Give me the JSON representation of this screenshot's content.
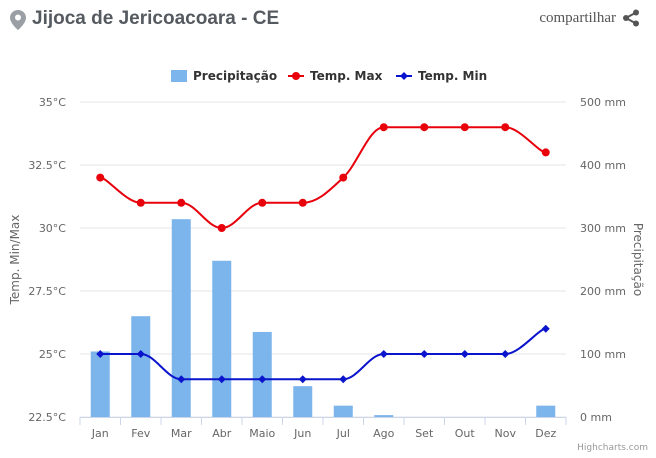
{
  "header": {
    "title": "Jijoca de Jericoacoara - CE",
    "share_label": "compartilhar",
    "pin_icon": "map-pin-icon",
    "share_icon": "share-icon"
  },
  "credits": "Highcharts.com",
  "colors": {
    "precip": "#7cb5ec",
    "tmax": "#e8000b",
    "tmin": "#0a14cc",
    "grid": "#e6e6e6",
    "title": "#555a60"
  },
  "chart_data": {
    "type": "bar+line",
    "categories": [
      "Jan",
      "Fev",
      "Mar",
      "Abr",
      "Maio",
      "Jun",
      "Jul",
      "Ago",
      "Set",
      "Out",
      "Nov",
      "Dez"
    ],
    "series": [
      {
        "name": "Precipitação",
        "type": "bar",
        "axis": "right",
        "values": [
          104,
          160,
          314,
          248,
          135,
          49,
          18,
          3,
          0,
          0,
          0,
          18
        ]
      },
      {
        "name": "Temp. Max",
        "type": "line",
        "axis": "left",
        "values": [
          32,
          31,
          31,
          30,
          31,
          31,
          32,
          34,
          34,
          34,
          34,
          33
        ]
      },
      {
        "name": "Temp. Min",
        "type": "line",
        "axis": "left",
        "values": [
          25,
          25,
          24,
          24,
          24,
          24,
          24,
          25,
          25,
          25,
          25,
          26
        ]
      }
    ],
    "y_left": {
      "label": "Temp. Min/Max",
      "min": 22.5,
      "max": 35,
      "ticks": [
        "22.5°C",
        "25°C",
        "27.5°C",
        "30°C",
        "32.5°C",
        "35°C"
      ]
    },
    "y_right": {
      "label": "Precipitação",
      "min": 0,
      "max": 500,
      "ticks": [
        "0 mm",
        "100 mm",
        "200 mm",
        "300 mm",
        "400 mm",
        "500 mm"
      ]
    },
    "grid": true,
    "legend": "top-center"
  }
}
